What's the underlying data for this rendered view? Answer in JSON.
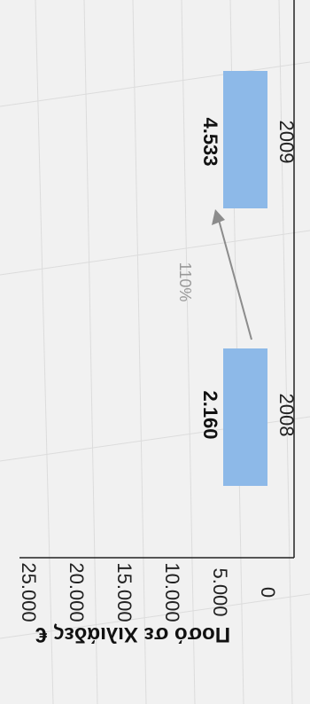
{
  "chart_data": {
    "type": "bar",
    "orientation": "rotated-90",
    "categories": [
      "2008",
      "2009"
    ],
    "values": [
      2160,
      4533
    ],
    "value_labels": [
      "2.160",
      "4.533"
    ],
    "growth_label": "110%",
    "ylabel": "Ποσό σε Χιλιάδες €",
    "ylim": [
      0,
      25000
    ],
    "yticks": [
      0,
      5000,
      10000,
      15000,
      20000,
      25000
    ],
    "ytick_labels": [
      "0",
      "5.000",
      "10.000",
      "15.000",
      "20.000",
      "25.000"
    ],
    "bar_color": "#8db9e8",
    "arrow_color": "#8c8c8c",
    "grid": false
  }
}
